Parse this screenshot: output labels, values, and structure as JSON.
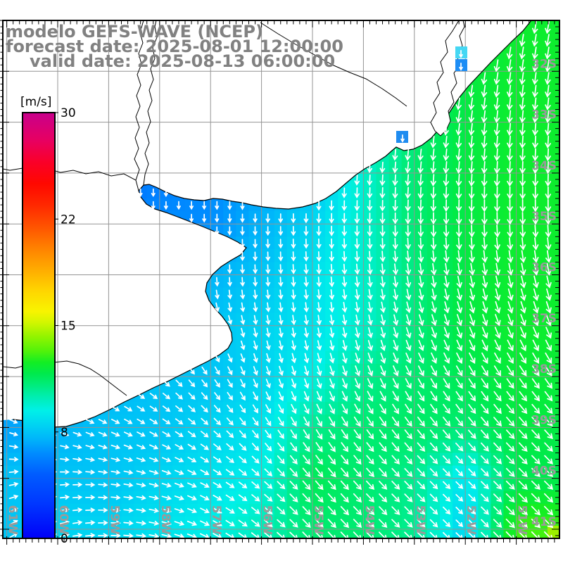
{
  "title": {
    "line1": "modelo GEFS-WAVE (NCEP)",
    "line2": "forecast date: 2025-08-01 12:00:00",
    "line3": "valid date: 2025-08-13 06:00:00"
  },
  "colorbar": {
    "unit_label": "[m/s]",
    "tick_labels": [
      "30",
      "22",
      "15",
      "8",
      "0"
    ],
    "min": 0,
    "max": 30,
    "stops": [
      [
        0,
        "#0000f8"
      ],
      [
        2.5,
        "#0038ff"
      ],
      [
        4.5,
        "#005cff"
      ],
      [
        6,
        "#008cff"
      ],
      [
        7,
        "#00b4fa"
      ],
      [
        8,
        "#00d4f2"
      ],
      [
        9,
        "#00f0e8"
      ],
      [
        10,
        "#00eeb0"
      ],
      [
        10.8,
        "#00ec7c"
      ],
      [
        11.6,
        "#00ea4c"
      ],
      [
        12.4,
        "#12ee24"
      ],
      [
        13.2,
        "#52f20a"
      ],
      [
        14.2,
        "#90f400"
      ],
      [
        15.2,
        "#d2f600"
      ],
      [
        16,
        "#f8f400"
      ],
      [
        17.5,
        "#ffd400"
      ],
      [
        19,
        "#ffaa00"
      ],
      [
        20.5,
        "#ff8000"
      ],
      [
        22,
        "#ff5200"
      ],
      [
        23.5,
        "#ff2800"
      ],
      [
        25,
        "#ff0800"
      ],
      [
        26.5,
        "#fa0028"
      ],
      [
        28,
        "#e80060"
      ],
      [
        30,
        "#c8008c"
      ]
    ]
  },
  "axes": {
    "lon_labels": [
      "61W",
      "60W",
      "59W",
      "58W",
      "57W",
      "56W",
      "55W",
      "54W",
      "53W",
      "52W",
      "51W"
    ],
    "lat_labels": [
      "32S",
      "33S",
      "34S",
      "35S",
      "36S",
      "37S",
      "38S",
      "39S",
      "40S",
      "41S"
    ]
  },
  "chart_data": {
    "type": "heatmap",
    "subtype": "wave-height-wind-vector-field",
    "units": "m/s",
    "legend_range": [
      0,
      30
    ],
    "lats_south": [
      31,
      32,
      33,
      34,
      35,
      36,
      37,
      38,
      39,
      40,
      41
    ],
    "lons_west": [
      61,
      60,
      59,
      58,
      57,
      56,
      55,
      54,
      53,
      52,
      51
    ],
    "speed_ms": [
      [
        null,
        null,
        null,
        null,
        null,
        null,
        null,
        7,
        10,
        11.5,
        12.2
      ],
      [
        null,
        null,
        null,
        null,
        null,
        null,
        6.5,
        8.5,
        10.5,
        11.8,
        12.2
      ],
      [
        null,
        null,
        null,
        null,
        null,
        6,
        7,
        9.5,
        11,
        11.8,
        12.2
      ],
      [
        null,
        5,
        5,
        5.5,
        6,
        6.5,
        7.5,
        9.5,
        11,
        11.8,
        12.2
      ],
      [
        null,
        5,
        5.5,
        6,
        6,
        7,
        8,
        9.5,
        11,
        11.8,
        12.2
      ],
      [
        null,
        5.5,
        6,
        6.5,
        7,
        7.5,
        8.5,
        9.5,
        10.8,
        11.8,
        12.2
      ],
      [
        null,
        null,
        6.5,
        7,
        7.5,
        8,
        8.5,
        9.5,
        10.8,
        11.8,
        12.2
      ],
      [
        null,
        null,
        7,
        7.5,
        7.5,
        8,
        9,
        10.5,
        11,
        11.5,
        12
      ],
      [
        6.5,
        7,
        7.5,
        7.5,
        8,
        8.5,
        10.5,
        11,
        11.2,
        11,
        11.8
      ],
      [
        7.5,
        7.5,
        7.5,
        8,
        8.5,
        9,
        11.5,
        11,
        10.5,
        8.5,
        11.5
      ],
      [
        7.5,
        8,
        8,
        8.5,
        9,
        9.8,
        11,
        11,
        10.5,
        8,
        13
      ]
    ],
    "dir_screen_deg": [
      [
        null,
        null,
        null,
        null,
        null,
        null,
        null,
        100,
        100,
        100,
        100
      ],
      [
        null,
        null,
        null,
        null,
        null,
        null,
        100,
        100,
        100,
        99,
        98
      ],
      [
        null,
        null,
        null,
        null,
        null,
        95,
        95,
        96,
        97,
        97,
        95
      ],
      [
        null,
        90,
        90,
        90,
        90,
        90,
        92,
        93,
        95,
        94,
        92
      ],
      [
        null,
        90,
        90,
        90,
        90,
        90,
        90,
        90,
        90,
        89,
        88
      ],
      [
        null,
        88,
        88,
        88,
        88,
        87,
        86,
        84,
        82,
        80,
        78
      ],
      [
        null,
        null,
        50,
        56,
        70,
        80,
        82,
        78,
        72,
        70,
        68
      ],
      [
        null,
        null,
        35,
        42,
        56,
        70,
        72,
        68,
        62,
        58,
        55
      ],
      [
        20,
        22,
        26,
        32,
        42,
        55,
        60,
        55,
        52,
        50,
        48
      ],
      [
        -10,
        -4,
        6,
        16,
        30,
        42,
        50,
        48,
        46,
        45,
        45
      ],
      [
        -32,
        -15,
        0,
        12,
        28,
        40,
        47,
        46,
        45,
        45,
        46
      ]
    ]
  }
}
